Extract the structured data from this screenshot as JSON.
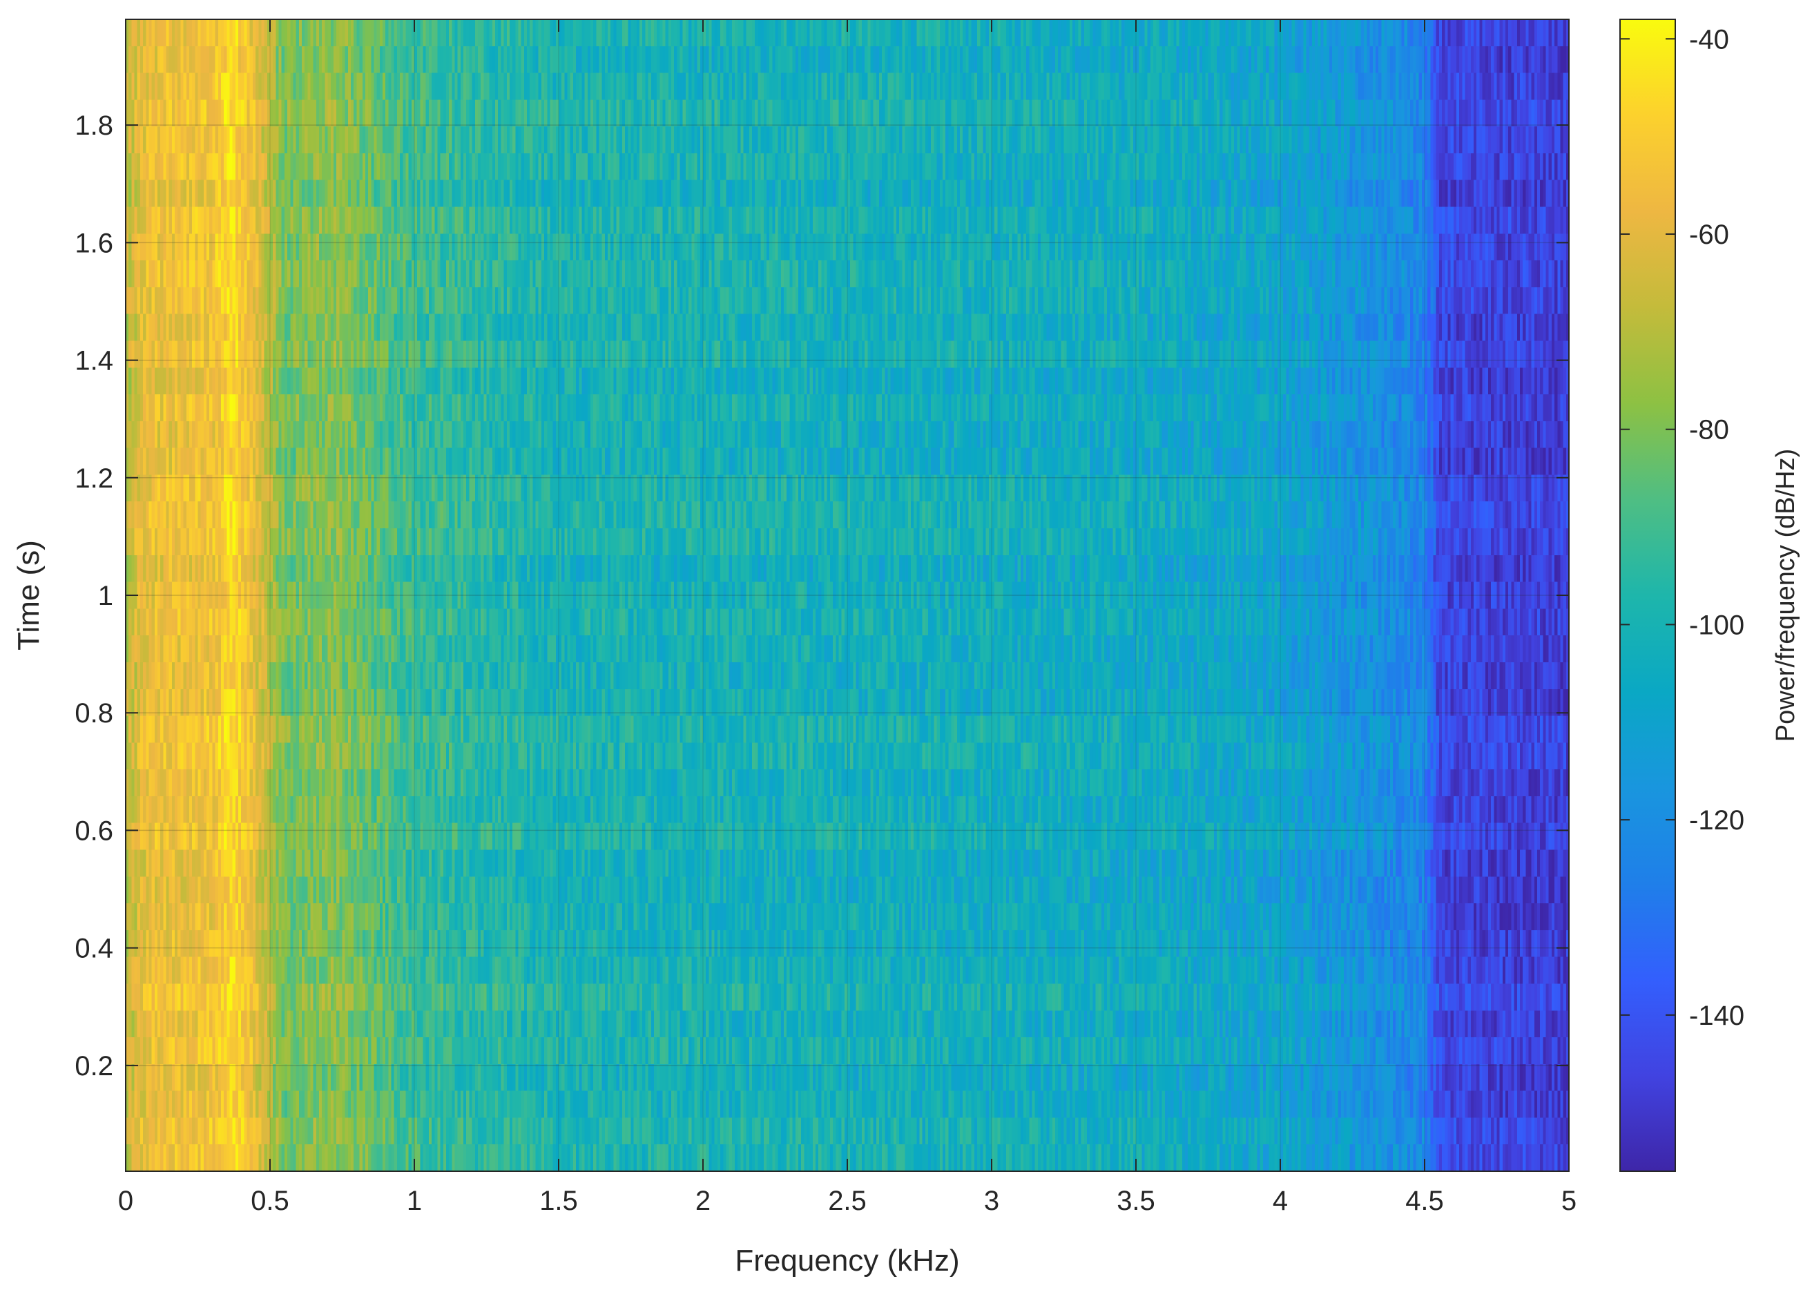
{
  "chart_data": {
    "type": "heatmap",
    "title": "",
    "xlabel": "Frequency (kHz)",
    "ylabel": "Time (s)",
    "xlim": [
      0,
      5
    ],
    "ylim": [
      0.02,
      1.98
    ],
    "x_ticks": [
      0,
      0.5,
      1,
      1.5,
      2,
      2.5,
      3,
      3.5,
      4,
      4.5,
      5
    ],
    "x_tick_labels": [
      "0",
      "0.5",
      "1",
      "1.5",
      "2",
      "2.5",
      "3",
      "3.5",
      "4",
      "4.5",
      "5"
    ],
    "y_ticks": [
      0.2,
      0.4,
      0.6,
      0.8,
      1,
      1.2,
      1.4,
      1.6,
      1.8
    ],
    "y_tick_labels": [
      "0.2",
      "0.4",
      "0.6",
      "0.8",
      "1",
      "1.2",
      "1.4",
      "1.6",
      "1.8"
    ],
    "grid": true,
    "colorbar": {
      "label": "Power/frequency (dB/Hz)",
      "range": [
        -156,
        -38
      ],
      "ticks": [
        -40,
        -60,
        -80,
        -100,
        -120,
        -140
      ],
      "tick_labels": [
        "-40",
        "-60",
        "-80",
        "-100",
        "-120",
        "-140"
      ],
      "colormap": "parula"
    },
    "colormap_stops": [
      "#3e26a8",
      "#4143e1",
      "#335ffd",
      "#1f7fe9",
      "#1996de",
      "#0aa8c4",
      "#1eb6ab",
      "#4fbe83",
      "#8dc143",
      "#c4bb3b",
      "#eeb742",
      "#fcd12d",
      "#f9fb0e"
    ],
    "power_profile": {
      "frequency_khz": [
        0,
        0.05,
        0.1,
        0.2,
        0.3,
        0.37,
        0.45,
        0.55,
        0.72,
        1.0,
        1.5,
        2.5,
        3.5,
        4.0,
        4.3,
        4.5,
        4.55,
        5.0
      ],
      "power_db": [
        -70,
        -60,
        -57,
        -56,
        -55,
        -46,
        -59,
        -82,
        -78,
        -92,
        -100,
        -102,
        -105,
        -110,
        -118,
        -124,
        -145,
        -148
      ]
    },
    "time_bins": 43,
    "frequency_bins": 500
  }
}
